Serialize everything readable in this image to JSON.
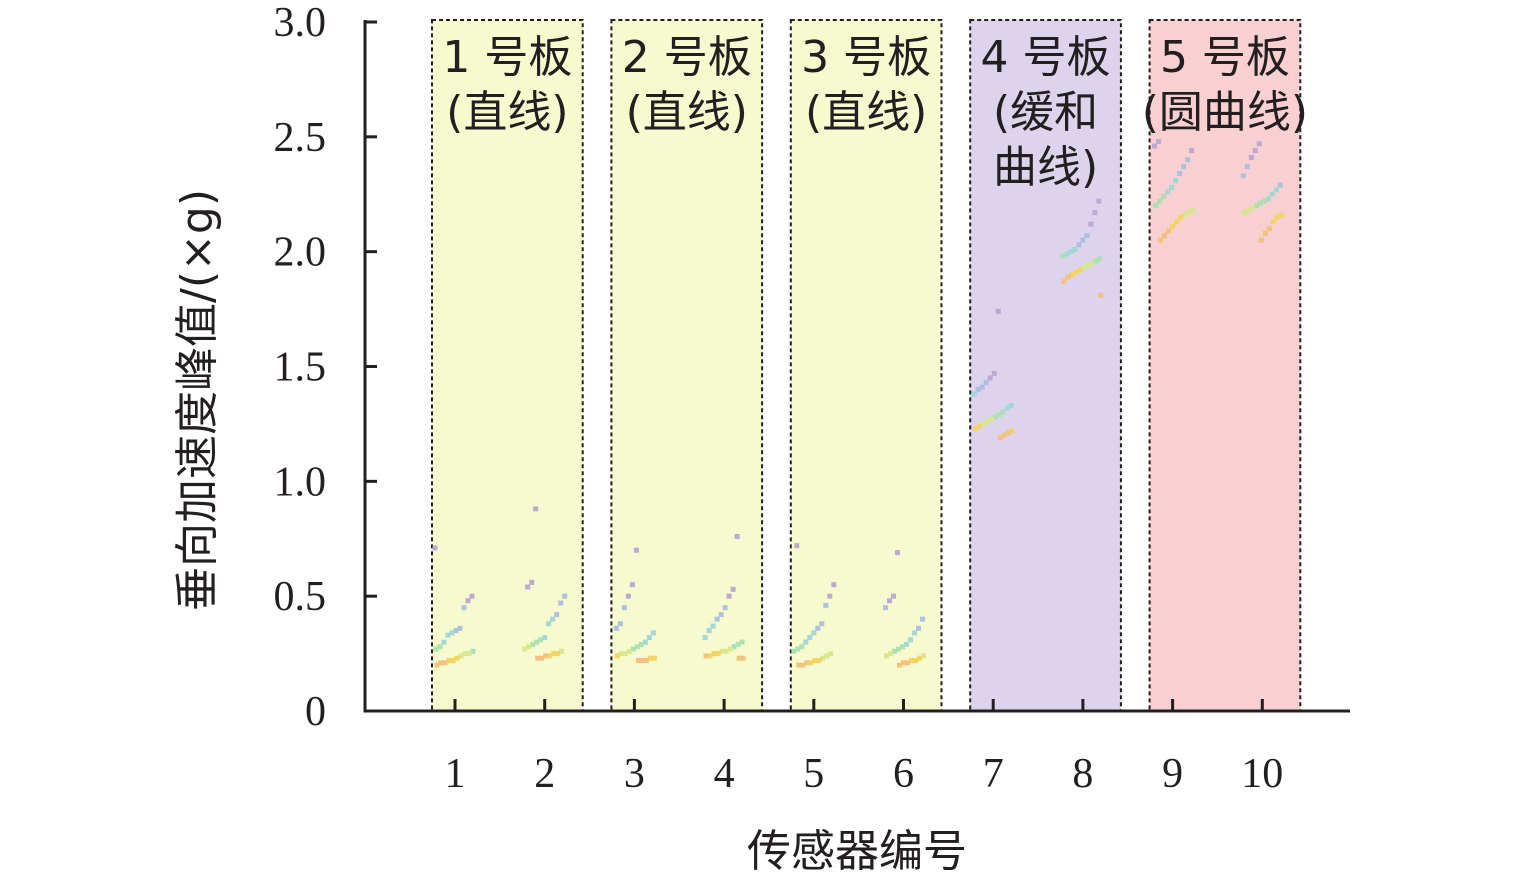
{
  "chart_data": {
    "type": "scatter",
    "xlabel": "传感器编号",
    "ylabel": "垂向加速度峰值/(×g)",
    "ylim": [
      0,
      3.0
    ],
    "y_ticks": [
      "0",
      "0.5",
      "1.0",
      "1.5",
      "2.0",
      "2.5",
      "3.0"
    ],
    "y_tick_values": [
      0,
      0.5,
      1.0,
      1.5,
      2.0,
      2.5,
      3.0
    ],
    "categories": [
      "1",
      "2",
      "3",
      "4",
      "5",
      "6",
      "7",
      "8",
      "9",
      "10"
    ],
    "grid": false,
    "panels": [
      {
        "lines": [
          "1 号板",
          "(直线)"
        ],
        "sensors": [
          1,
          2
        ],
        "color": "#f7f9cf"
      },
      {
        "lines": [
          "2 号板",
          "(直线)"
        ],
        "sensors": [
          3,
          4
        ],
        "color": "#f7f9cf"
      },
      {
        "lines": [
          "3 号板",
          "(直线)"
        ],
        "sensors": [
          5,
          6
        ],
        "color": "#f7f9cf"
      },
      {
        "lines": [
          "4 号板",
          "(缓和",
          "曲线)"
        ],
        "sensors": [
          7,
          8
        ],
        "color": "#ddd3ec"
      },
      {
        "lines": [
          "5 号板",
          "(圆曲线)"
        ],
        "sensors": [
          9,
          10
        ],
        "color": "#f9d0d2"
      }
    ],
    "series": [
      {
        "sensor": 1,
        "values": [
          0.71,
          0.5,
          0.48,
          0.45,
          0.36,
          0.35,
          0.34,
          0.33,
          0.3,
          0.28,
          0.27,
          0.26,
          0.25,
          0.25,
          0.24,
          0.23,
          0.22,
          0.22,
          0.21,
          0.21,
          0.2
        ]
      },
      {
        "sensor": 2,
        "values": [
          0.88,
          0.56,
          0.54,
          0.5,
          0.47,
          0.42,
          0.4,
          0.38,
          0.32,
          0.31,
          0.3,
          0.29,
          0.28,
          0.27,
          0.26,
          0.25,
          0.25,
          0.24,
          0.24,
          0.23,
          0.23
        ]
      },
      {
        "sensor": 3,
        "values": [
          0.7,
          0.55,
          0.5,
          0.45,
          0.38,
          0.36,
          0.34,
          0.32,
          0.3,
          0.29,
          0.28,
          0.27,
          0.26,
          0.25,
          0.25,
          0.24,
          0.23,
          0.23,
          0.22,
          0.22,
          0.22
        ]
      },
      {
        "sensor": 4,
        "values": [
          0.76,
          0.53,
          0.5,
          0.45,
          0.42,
          0.4,
          0.37,
          0.35,
          0.32,
          0.3,
          0.29,
          0.28,
          0.27,
          0.26,
          0.26,
          0.25,
          0.25,
          0.24,
          0.24,
          0.23,
          0.23
        ]
      },
      {
        "sensor": 5,
        "values": [
          0.72,
          0.55,
          0.5,
          0.46,
          0.38,
          0.36,
          0.34,
          0.32,
          0.3,
          0.28,
          0.27,
          0.26,
          0.25,
          0.24,
          0.23,
          0.22,
          0.22,
          0.21,
          0.21,
          0.2,
          0.2
        ]
      },
      {
        "sensor": 6,
        "values": [
          0.69,
          0.5,
          0.48,
          0.45,
          0.4,
          0.36,
          0.34,
          0.31,
          0.29,
          0.28,
          0.27,
          0.26,
          0.25,
          0.24,
          0.24,
          0.23,
          0.22,
          0.22,
          0.21,
          0.21,
          0.2
        ]
      },
      {
        "sensor": 7,
        "values": [
          1.74,
          1.47,
          1.45,
          1.43,
          1.41,
          1.4,
          1.38,
          1.33,
          1.32,
          1.3,
          1.29,
          1.28,
          1.27,
          1.26,
          1.25,
          1.24,
          1.23,
          1.22,
          1.21,
          1.2,
          1.19
        ]
      },
      {
        "sensor": 8,
        "values": [
          2.22,
          2.17,
          2.12,
          2.07,
          2.05,
          2.03,
          2.01,
          2.0,
          1.99,
          1.98,
          1.97,
          1.96,
          1.95,
          1.94,
          1.93,
          1.92,
          1.91,
          1.9,
          1.89,
          1.87,
          1.81
        ]
      },
      {
        "sensor": 9,
        "values": [
          2.48,
          2.46,
          2.44,
          2.4,
          2.37,
          2.34,
          2.31,
          2.28,
          2.26,
          2.24,
          2.22,
          2.2,
          2.18,
          2.17,
          2.16,
          2.15,
          2.13,
          2.11,
          2.09,
          2.07,
          2.05
        ]
      },
      {
        "sensor": 10,
        "values": [
          2.47,
          2.44,
          2.41,
          2.37,
          2.33,
          2.29,
          2.27,
          2.25,
          2.23,
          2.22,
          2.21,
          2.2,
          2.19,
          2.18,
          2.17,
          2.16,
          2.15,
          2.13,
          2.1,
          2.08,
          2.05
        ]
      }
    ],
    "point_colors": [
      "#b9a5d3",
      "#a9bfe0",
      "#9fd6d6",
      "#a8e0b0",
      "#d6e78c",
      "#f2d45c",
      "#f2c07a"
    ]
  }
}
